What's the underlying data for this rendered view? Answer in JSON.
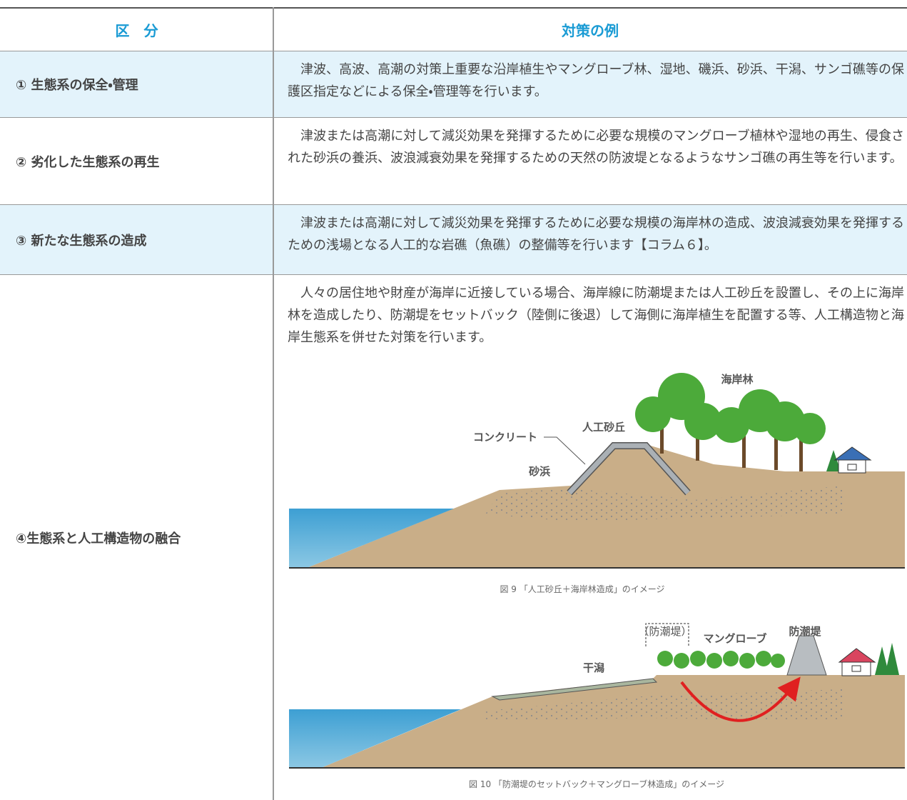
{
  "table": {
    "header": [
      "区　分",
      "対策の例"
    ],
    "rows": [
      [
        "① 生態系の保全・管理",
        "津波、高波、高潮の対策上重要な沿岸植生やマングローブ林、湿地、磯浜、砂浜、干潟、サンゴ礁等の保護区指定などによる保全・管理等を行います。"
      ],
      [
        "② 劣化した生態系の再生",
        "津波または高潮に対して減災効果を発揮するために必要な規模のマングローブ植林や湿地の再生、侵食された砂浜の養浜、波浪減衰効果を発揮するための天然の防波堤となるようなサンゴ礁の再生等を行います。"
      ],
      [
        "③ 新たな生態系の造成",
        "津波または高潮に対して減災効果を発揮するために必要な規模の海岸林の造成、波浪減衰効果を発揮するための浅場となる人工的な岩礁（魚礁）の整備等を行います【コラム６】。"
      ],
      [
        "④生態系と人工構造物の融合",
        "人々の居住地や財産が海岸に近接している場合、海岸線に防潮堤または人工砂丘を設置し、その上に海岸林を造成したり、防潮堤をセットバック（陸側に後退）して海側に海岸植生を配置する等、人工構造物と海岸生態系を併せた対策を行います。"
      ]
    ]
  },
  "figures": [
    {
      "labels": [
        "海岸林",
        "人工砂丘",
        "コンクリート",
        "砂浜"
      ],
      "caption": "図 9 「人工砂丘＋海岸林造成」のイメージ"
    },
    {
      "labels": [
        "（防潮堤）",
        "マングローブ",
        "防潮堤",
        "干潟"
      ],
      "caption": "図 10 「防潮堤のセットバック＋マングローブ林造成」のイメージ"
    }
  ]
}
